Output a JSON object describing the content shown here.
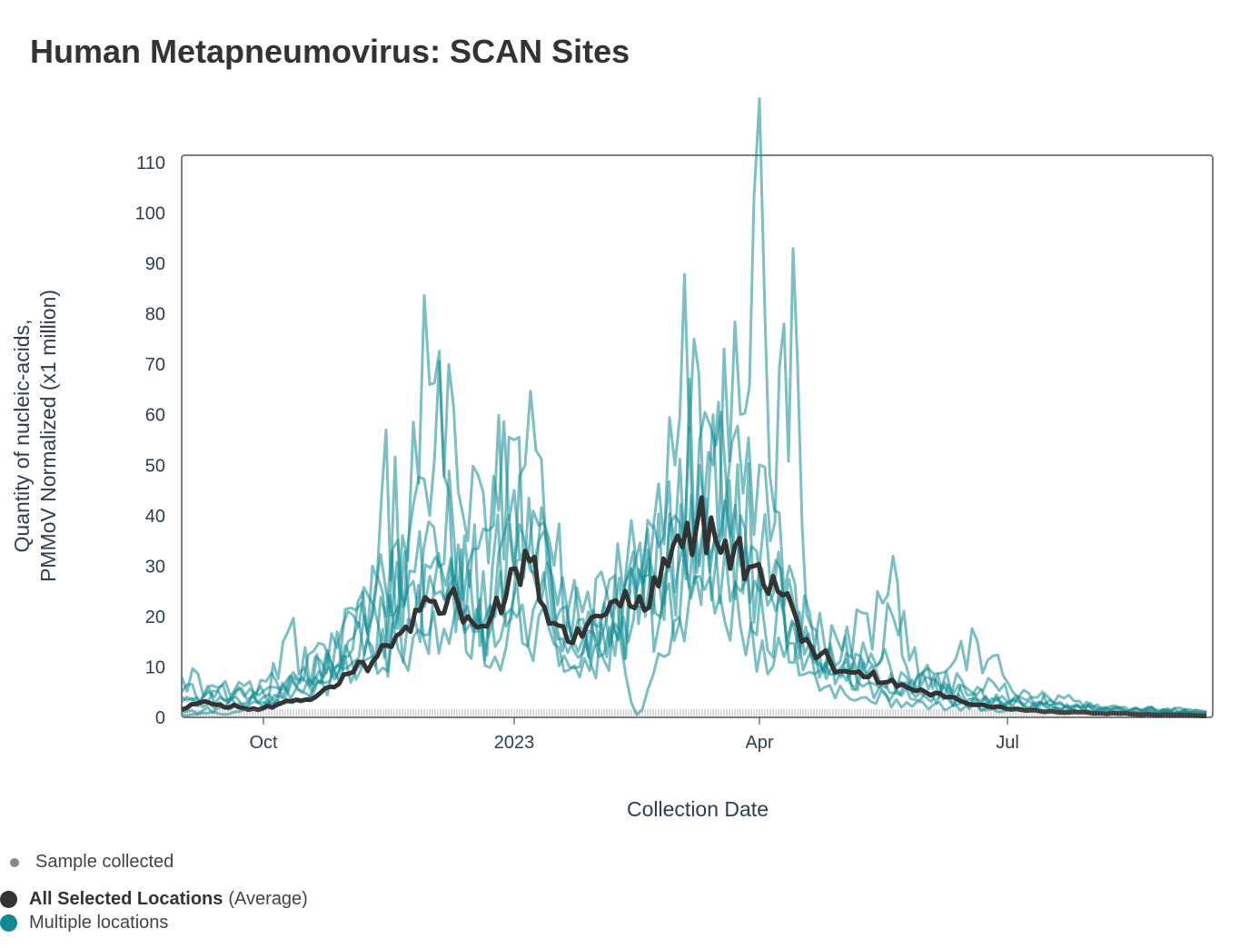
{
  "title": "Human Metapneumovirus: SCAN Sites",
  "chart_data": {
    "type": "line",
    "title": "Human Metapneumovirus: SCAN Sites",
    "xlabel": "Collection Date",
    "ylabel_line1": "Quantity of nucleic-acids,",
    "ylabel_line2": "PMMoV Normalized (x1 million)",
    "ylim": [
      0,
      110
    ],
    "yticks": [
      0,
      10,
      20,
      30,
      40,
      50,
      60,
      70,
      80,
      90,
      100,
      110
    ],
    "xlim": [
      "2022-09-01",
      "2023-09-12"
    ],
    "xticks": [
      {
        "date": "2022-10-01",
        "label": "Oct"
      },
      {
        "date": "2023-01-01",
        "label": "2023"
      },
      {
        "date": "2023-04-01",
        "label": "Apr"
      },
      {
        "date": "2023-07-01",
        "label": "Jul"
      }
    ],
    "grid": false,
    "legend_placement": "bottom-left",
    "series": [
      {
        "name": "All Selected Locations",
        "name_suffix": "(Average)",
        "color": "#333333",
        "points": [
          [
            "2022-09-01",
            1.5
          ],
          [
            "2022-09-08",
            3
          ],
          [
            "2022-09-15",
            2.5
          ],
          [
            "2022-09-22",
            2
          ],
          [
            "2022-09-29",
            1.5
          ],
          [
            "2022-10-06",
            2.5
          ],
          [
            "2022-10-13",
            3.5
          ],
          [
            "2022-10-20",
            4
          ],
          [
            "2022-10-27",
            6
          ],
          [
            "2022-11-03",
            9
          ],
          [
            "2022-11-10",
            11
          ],
          [
            "2022-11-17",
            14
          ],
          [
            "2022-11-24",
            17
          ],
          [
            "2022-12-01",
            23
          ],
          [
            "2022-12-08",
            24
          ],
          [
            "2022-12-15",
            20
          ],
          [
            "2022-12-22",
            18
          ],
          [
            "2022-12-29",
            24
          ],
          [
            "2023-01-05",
            33
          ],
          [
            "2023-01-12",
            22
          ],
          [
            "2023-01-19",
            18
          ],
          [
            "2023-01-26",
            16
          ],
          [
            "2023-02-02",
            20
          ],
          [
            "2023-02-09",
            22
          ],
          [
            "2023-02-16",
            24
          ],
          [
            "2023-02-23",
            26
          ],
          [
            "2023-03-02",
            36
          ],
          [
            "2023-03-09",
            38
          ],
          [
            "2023-03-16",
            35
          ],
          [
            "2023-03-23",
            34
          ],
          [
            "2023-03-30",
            30
          ],
          [
            "2023-04-06",
            28
          ],
          [
            "2023-04-13",
            22
          ],
          [
            "2023-04-20",
            14
          ],
          [
            "2023-04-27",
            11
          ],
          [
            "2023-05-04",
            9
          ],
          [
            "2023-05-11",
            8
          ],
          [
            "2023-05-18",
            7
          ],
          [
            "2023-05-25",
            6
          ],
          [
            "2023-06-01",
            5
          ],
          [
            "2023-06-08",
            4
          ],
          [
            "2023-06-15",
            3
          ],
          [
            "2023-06-22",
            2.5
          ],
          [
            "2023-06-29",
            2
          ],
          [
            "2023-07-06",
            1.5
          ],
          [
            "2023-07-13",
            1.2
          ],
          [
            "2023-07-20",
            1
          ],
          [
            "2023-07-27",
            1
          ],
          [
            "2023-08-03",
            0.8
          ],
          [
            "2023-08-10",
            0.8
          ],
          [
            "2023-08-17",
            0.6
          ],
          [
            "2023-08-24",
            0.5
          ],
          [
            "2023-08-31",
            0.5
          ],
          [
            "2023-09-07",
            0.4
          ],
          [
            "2023-09-12",
            0.3
          ]
        ]
      },
      {
        "name": "Multiple locations",
        "color": "#0e8a93",
        "is_group": true,
        "locations": [
          [
            [
              "2022-09-01",
              5
            ],
            [
              "2022-09-15",
              4
            ],
            [
              "2022-10-01",
              3
            ],
            [
              "2022-10-15",
              8
            ],
            [
              "2022-11-01",
              12
            ],
            [
              "2022-11-10",
              30
            ],
            [
              "2022-11-15",
              57
            ],
            [
              "2022-11-20",
              25
            ],
            [
              "2022-12-01",
              28
            ],
            [
              "2022-12-15",
              22
            ],
            [
              "2023-01-01",
              30
            ],
            [
              "2023-01-15",
              20
            ],
            [
              "2023-02-01",
              15
            ],
            [
              "2023-02-15",
              22
            ],
            [
              "2023-03-01",
              35
            ],
            [
              "2023-03-10",
              55
            ],
            [
              "2023-03-20",
              45
            ],
            [
              "2023-04-01",
              30
            ],
            [
              "2023-04-15",
              18
            ],
            [
              "2023-05-01",
              10
            ],
            [
              "2023-05-15",
              6
            ],
            [
              "2023-06-01",
              4
            ],
            [
              "2023-06-15",
              3
            ],
            [
              "2023-07-01",
              2
            ],
            [
              "2023-08-01",
              1
            ],
            [
              "2023-09-12",
              0.5
            ]
          ],
          [
            [
              "2022-09-01",
              8
            ],
            [
              "2022-09-15",
              6
            ],
            [
              "2022-10-01",
              4
            ],
            [
              "2022-10-15",
              5
            ],
            [
              "2022-11-01",
              10
            ],
            [
              "2022-11-15",
              20
            ],
            [
              "2022-12-01",
              66
            ],
            [
              "2022-12-08",
              45
            ],
            [
              "2022-12-15",
              30
            ],
            [
              "2023-01-01",
              55
            ],
            [
              "2023-01-10",
              35
            ],
            [
              "2023-01-20",
              22
            ],
            [
              "2023-02-01",
              18
            ],
            [
              "2023-02-15",
              30
            ],
            [
              "2023-03-01",
              50
            ],
            [
              "2023-03-08",
              75
            ],
            [
              "2023-03-15",
              50
            ],
            [
              "2023-03-25",
              40
            ],
            [
              "2023-04-01",
              25
            ],
            [
              "2023-04-15",
              15
            ],
            [
              "2023-05-01",
              9
            ],
            [
              "2023-05-15",
              6
            ],
            [
              "2023-06-01",
              5
            ],
            [
              "2023-07-01",
              3
            ],
            [
              "2023-08-01",
              1
            ],
            [
              "2023-09-12",
              1
            ]
          ],
          [
            [
              "2022-09-01",
              2
            ],
            [
              "2022-09-15",
              3
            ],
            [
              "2022-10-01",
              2
            ],
            [
              "2022-10-10",
              17
            ],
            [
              "2022-10-20",
              8
            ],
            [
              "2022-11-01",
              15
            ],
            [
              "2022-11-15",
              25
            ],
            [
              "2022-12-01",
              40
            ],
            [
              "2022-12-08",
              70
            ],
            [
              "2022-12-15",
              35
            ],
            [
              "2023-01-01",
              45
            ],
            [
              "2023-01-15",
              25
            ],
            [
              "2023-02-01",
              12
            ],
            [
              "2023-02-15",
              25
            ],
            [
              "2023-03-01",
              40
            ],
            [
              "2023-03-15",
              60
            ],
            [
              "2023-03-25",
              60
            ],
            [
              "2023-03-30",
              103
            ],
            [
              "2023-04-03",
              80
            ],
            [
              "2023-04-10",
              25
            ],
            [
              "2023-04-20",
              12
            ],
            [
              "2023-05-01",
              8
            ],
            [
              "2023-05-20",
              32
            ],
            [
              "2023-05-25",
              10
            ],
            [
              "2023-06-15",
              4
            ],
            [
              "2023-07-15",
              2
            ],
            [
              "2023-09-12",
              1
            ]
          ],
          [
            [
              "2022-09-01",
              1
            ],
            [
              "2022-09-20",
              2
            ],
            [
              "2022-10-05",
              6
            ],
            [
              "2022-10-20",
              12
            ],
            [
              "2022-11-05",
              18
            ],
            [
              "2022-11-20",
              22
            ],
            [
              "2022-12-05",
              30
            ],
            [
              "2022-12-20",
              18
            ],
            [
              "2023-01-05",
              50
            ],
            [
              "2023-01-15",
              28
            ],
            [
              "2023-02-01",
              14
            ],
            [
              "2023-02-20",
              28
            ],
            [
              "2023-03-05",
              30
            ],
            [
              "2023-03-20",
              45
            ],
            [
              "2023-04-05",
              35
            ],
            [
              "2023-04-10",
              78
            ],
            [
              "2023-04-15",
              70
            ],
            [
              "2023-04-20",
              18
            ],
            [
              "2023-05-05",
              12
            ],
            [
              "2023-05-25",
              8
            ],
            [
              "2023-06-10",
              5
            ],
            [
              "2023-07-01",
              3
            ],
            [
              "2023-08-01",
              2
            ],
            [
              "2023-09-12",
              1
            ]
          ],
          [
            [
              "2022-09-01",
              3
            ],
            [
              "2022-09-20",
              4
            ],
            [
              "2022-10-10",
              5
            ],
            [
              "2022-10-25",
              10
            ],
            [
              "2022-11-10",
              14
            ],
            [
              "2022-11-25",
              18
            ],
            [
              "2022-12-10",
              28
            ],
            [
              "2022-12-25",
              14
            ],
            [
              "2023-01-10",
              24
            ],
            [
              "2023-01-25",
              10
            ],
            [
              "2023-02-10",
              20
            ],
            [
              "2023-02-25",
              24
            ],
            [
              "2023-03-10",
              30
            ],
            [
              "2023-03-25",
              25
            ],
            [
              "2023-04-10",
              20
            ],
            [
              "2023-04-25",
              10
            ],
            [
              "2023-05-10",
              8
            ],
            [
              "2023-05-25",
              6
            ],
            [
              "2023-06-10",
              10
            ],
            [
              "2023-06-20",
              15
            ],
            [
              "2023-07-05",
              4
            ],
            [
              "2023-08-01",
              2
            ],
            [
              "2023-09-12",
              1
            ]
          ],
          [
            [
              "2022-09-01",
              0.5
            ],
            [
              "2022-09-20",
              1
            ],
            [
              "2022-10-10",
              3
            ],
            [
              "2022-10-25",
              7
            ],
            [
              "2022-11-10",
              12
            ],
            [
              "2022-11-25",
              16
            ],
            [
              "2022-12-10",
              20
            ],
            [
              "2022-12-25",
              12
            ],
            [
              "2023-01-10",
              20
            ],
            [
              "2023-01-25",
              8
            ],
            [
              "2023-02-05",
              22
            ],
            [
              "2023-02-15",
              0.5
            ],
            [
              "2023-02-25",
              12
            ],
            [
              "2023-03-10",
              28
            ],
            [
              "2023-03-25",
              18
            ],
            [
              "2023-04-10",
              12
            ],
            [
              "2023-04-25",
              6
            ],
            [
              "2023-05-10",
              4
            ],
            [
              "2023-05-25",
              3
            ],
            [
              "2023-06-10",
              2
            ],
            [
              "2023-07-01",
              1.5
            ],
            [
              "2023-09-12",
              0.5
            ]
          ],
          [
            [
              "2022-09-01",
              4
            ],
            [
              "2022-09-20",
              5
            ],
            [
              "2022-10-10",
              7
            ],
            [
              "2022-10-25",
              12
            ],
            [
              "2022-11-10",
              20
            ],
            [
              "2022-11-25",
              27
            ],
            [
              "2022-12-10",
              35
            ],
            [
              "2022-12-25",
              20
            ],
            [
              "2023-01-10",
              38
            ],
            [
              "2023-01-25",
              18
            ],
            [
              "2023-02-10",
              25
            ],
            [
              "2023-02-25",
              36
            ],
            [
              "2023-03-10",
              50
            ],
            [
              "2023-03-25",
              30
            ],
            [
              "2023-04-10",
              22
            ],
            [
              "2023-04-25",
              14
            ],
            [
              "2023-05-10",
              10
            ],
            [
              "2023-05-20",
              20
            ],
            [
              "2023-06-01",
              8
            ],
            [
              "2023-06-20",
              6
            ],
            [
              "2023-07-10",
              4
            ],
            [
              "2023-08-10",
              2
            ],
            [
              "2023-09-12",
              1
            ]
          ]
        ]
      }
    ]
  },
  "legend": {
    "sample_label": "Sample collected",
    "sample_color": "#7f8c8d",
    "average_label": "All Selected Locations",
    "average_suffix": "(Average)",
    "average_color": "#333333",
    "locations_label": "Multiple locations",
    "locations_color": "#0e8a93"
  }
}
